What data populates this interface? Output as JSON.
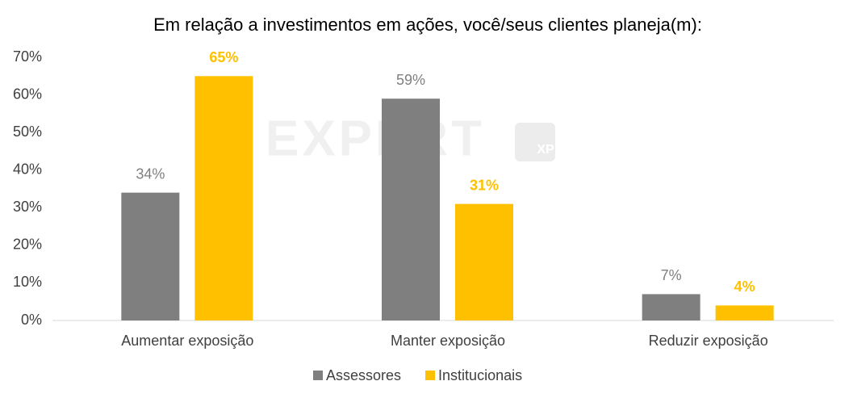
{
  "chart_data": {
    "type": "bar",
    "title": "Em relação a investimentos em ações, você/seus clientes planeja(m):",
    "watermark": {
      "text": "EXPERT",
      "badge": "XP"
    },
    "categories": [
      "Aumentar exposição",
      "Manter exposição",
      "Reduzir exposição"
    ],
    "series": [
      {
        "name": "Assessores",
        "color": "#7f7f7f",
        "values": [
          34,
          59,
          7
        ],
        "value_labels": [
          "34%",
          "59%",
          "7%"
        ]
      },
      {
        "name": "Institucionais",
        "color": "#ffc000",
        "values": [
          65,
          31,
          4
        ],
        "value_labels": [
          "65%",
          "31%",
          "4%"
        ]
      }
    ],
    "ylim": [
      0,
      70
    ],
    "yticks": [
      {
        "value": 0,
        "label": "0%"
      },
      {
        "value": 10,
        "label": "10%"
      },
      {
        "value": 20,
        "label": "20%"
      },
      {
        "value": 30,
        "label": "30%"
      },
      {
        "value": 40,
        "label": "40%"
      },
      {
        "value": 50,
        "label": "50%"
      },
      {
        "value": 60,
        "label": "60%"
      },
      {
        "value": 70,
        "label": "70%"
      }
    ],
    "grid": false,
    "legend": "bottom"
  }
}
